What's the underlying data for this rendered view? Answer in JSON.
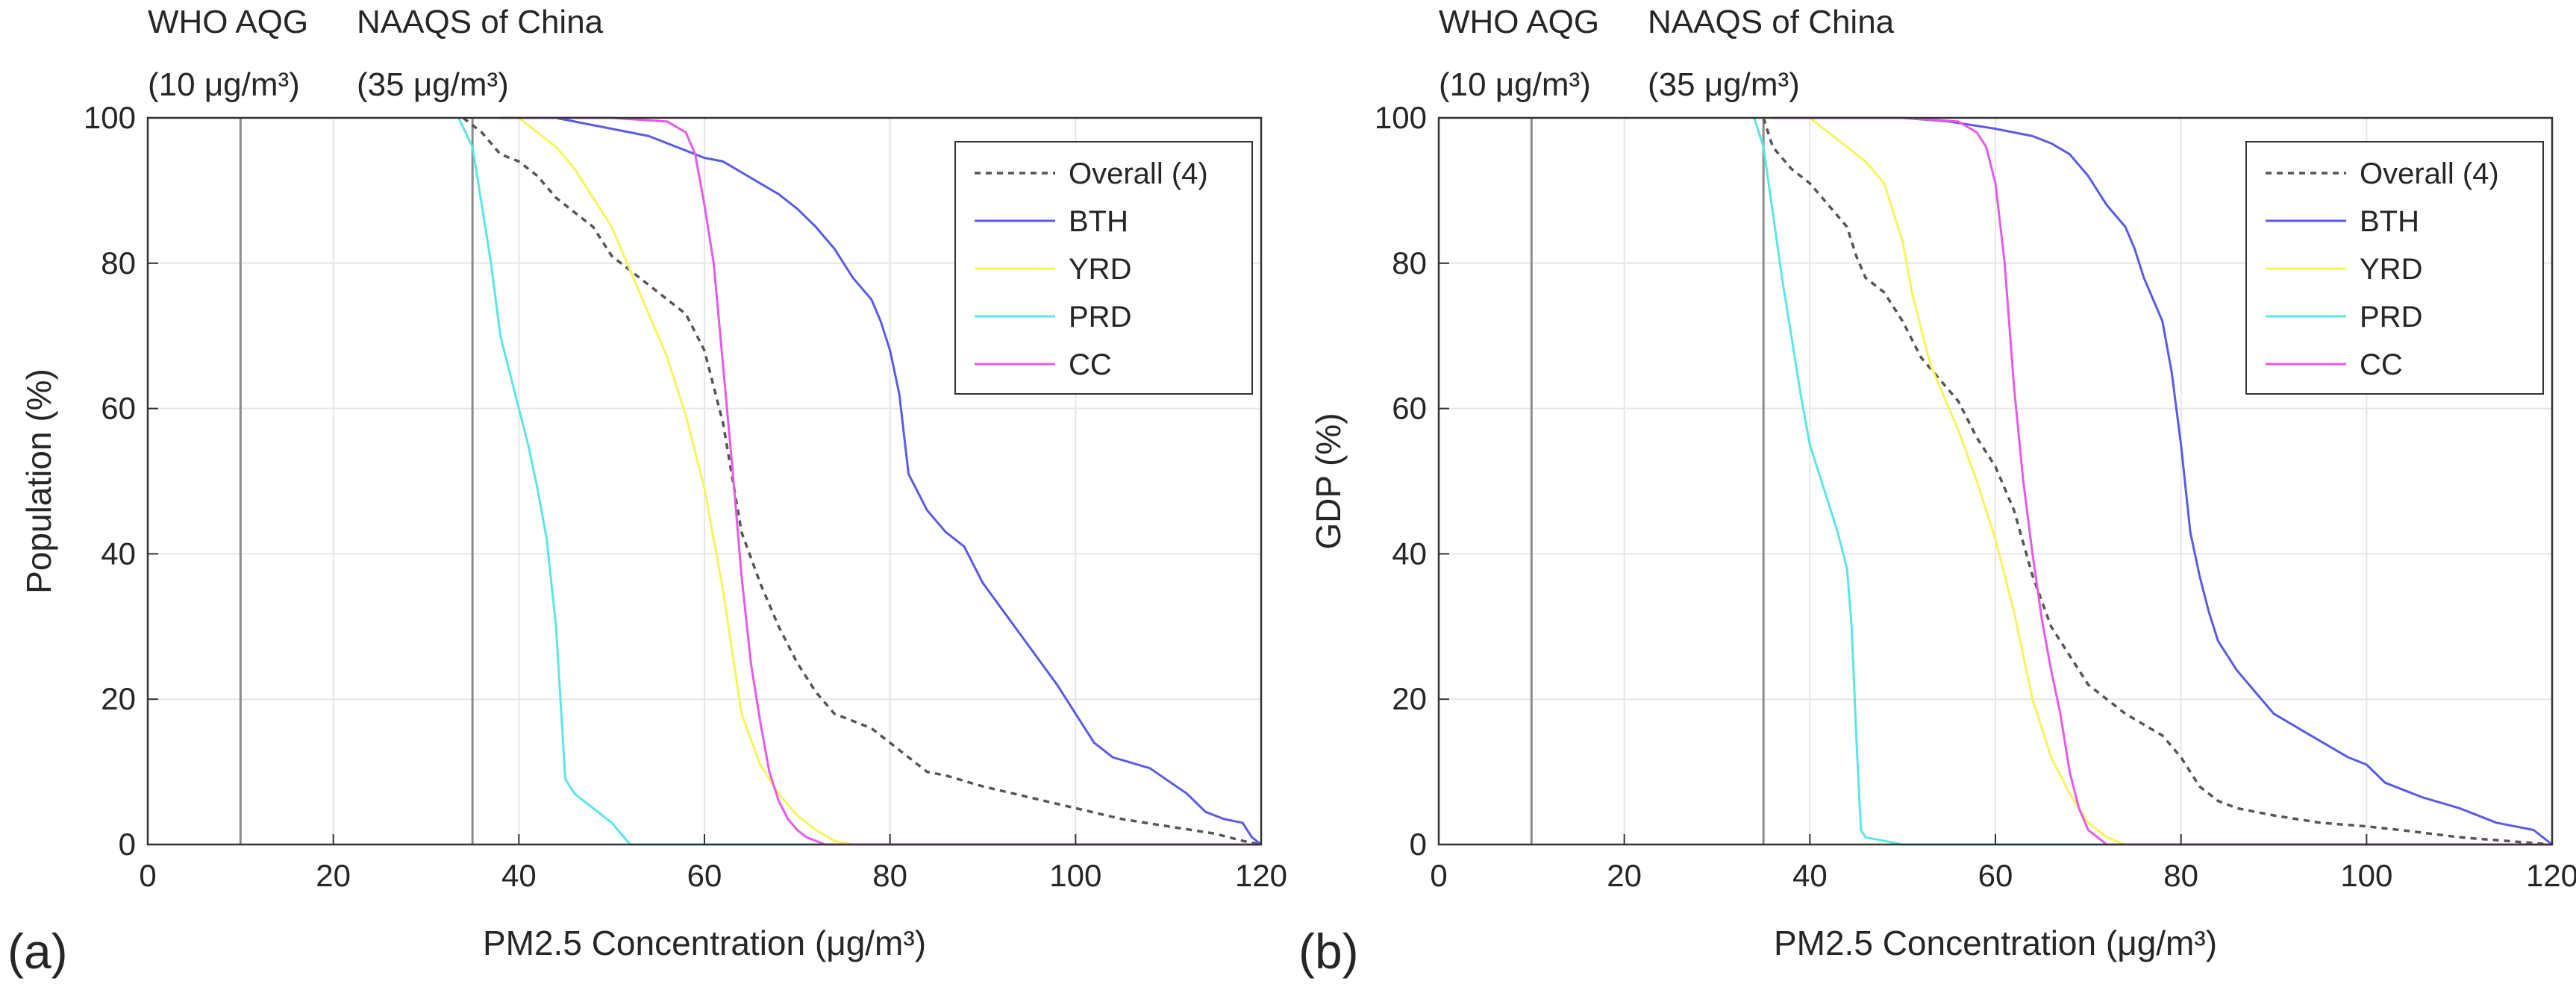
{
  "colors": {
    "overall": "#555555",
    "BTH": "#5a5ae6",
    "YRD": "#f5f55a",
    "PRD": "#5ae6e6",
    "CC": "#e65ae6",
    "grid": "#e6e6e6",
    "threshold": "#8c8c8c",
    "axis": "#333333"
  },
  "panels": [
    {
      "panel_label": "(a)",
      "threshold_who_line1": "WHO AQG",
      "threshold_who_line2": "(10 μg/m³)",
      "threshold_naaqs_line1": "NAAQS of China",
      "threshold_naaqs_line2": "(35 μg/m³)",
      "legend": [
        "Overall (4)",
        "BTH",
        "YRD",
        "PRD",
        "CC"
      ]
    },
    {
      "panel_label": "(b)",
      "threshold_who_line1": "WHO AQG",
      "threshold_who_line2": "(10 μg/m³)",
      "threshold_naaqs_line1": "NAAQS of China",
      "threshold_naaqs_line2": "(35 μg/m³)",
      "legend": [
        "Overall (4)",
        "BTH",
        "YRD",
        "PRD",
        "CC"
      ]
    }
  ],
  "chart_data": [
    {
      "type": "line",
      "title": "",
      "xlabel": "PM2.5 Concentration (μg/m³)",
      "ylabel": "Population (%)",
      "xlim": [
        0,
        120
      ],
      "ylim": [
        0,
        100
      ],
      "xticks": [
        0,
        20,
        40,
        60,
        80,
        100,
        120
      ],
      "yticks": [
        0,
        20,
        40,
        60,
        80,
        100
      ],
      "grid": true,
      "legend_position": "top-right",
      "thresholds": [
        10,
        35
      ],
      "series": [
        {
          "name": "Overall (4)",
          "key": "overall",
          "dashed": true,
          "x": [
            34,
            36,
            38,
            40,
            42,
            44,
            46,
            48,
            50,
            52,
            54,
            56,
            58,
            60,
            62,
            64,
            66,
            68,
            70,
            72,
            74,
            76,
            78,
            80,
            82,
            84,
            86,
            90,
            95,
            100,
            105,
            110,
            115,
            118,
            120
          ],
          "y": [
            100,
            98,
            95,
            94,
            92,
            89,
            87,
            85,
            81,
            79,
            77,
            75,
            73,
            68,
            58,
            43,
            36,
            30,
            25,
            21,
            18,
            17,
            16,
            14,
            12,
            10,
            9.5,
            8,
            6.5,
            5,
            3.5,
            2.5,
            1.5,
            0.5,
            0
          ]
        },
        {
          "name": "BTH",
          "key": "BTH",
          "x": [
            44,
            46,
            50,
            54,
            56,
            58,
            60,
            62,
            64,
            66,
            68,
            70,
            72,
            74,
            76,
            78,
            79,
            80,
            81,
            82,
            84,
            86,
            88,
            90,
            94,
            98,
            100,
            102,
            104,
            108,
            112,
            114,
            116,
            118,
            119,
            120
          ],
          "y": [
            100,
            99.5,
            98.5,
            97.5,
            96.5,
            95.5,
            94.5,
            94,
            92.5,
            91,
            89.5,
            87.5,
            85,
            82,
            78,
            75,
            72,
            68,
            62,
            51,
            46,
            43,
            41,
            36,
            29,
            22,
            18,
            14,
            12,
            10.5,
            7,
            4.5,
            3.5,
            3,
            1,
            0
          ]
        },
        {
          "name": "YRD",
          "key": "YRD",
          "x": [
            40,
            42,
            44,
            46,
            48,
            50,
            52,
            54,
            56,
            58,
            60,
            62,
            64,
            66,
            68,
            70,
            72,
            74,
            76,
            120
          ],
          "y": [
            100,
            98,
            96,
            93,
            89,
            85,
            79,
            73,
            67,
            59,
            49,
            35,
            18,
            11,
            7,
            4,
            2,
            0.5,
            0,
            0
          ]
        },
        {
          "name": "PRD",
          "key": "PRD",
          "x": [
            33.5,
            35,
            36,
            37,
            38,
            39,
            40,
            41,
            42,
            43,
            44,
            45,
            46,
            48,
            50,
            51,
            52,
            120
          ],
          "y": [
            100,
            96,
            88,
            80,
            70,
            65,
            60,
            55,
            49,
            42,
            30,
            9,
            7,
            5,
            3,
            1.5,
            0,
            0
          ]
        },
        {
          "name": "CC",
          "key": "CC",
          "x": [
            38,
            50,
            56,
            58,
            59,
            60,
            61,
            62,
            63,
            64,
            65,
            66,
            67,
            68,
            69,
            70,
            71,
            72,
            73,
            120
          ],
          "y": [
            100,
            100,
            99.5,
            98,
            95,
            88,
            80,
            66,
            52,
            37,
            25,
            17,
            10,
            6,
            3.5,
            2,
            1,
            0.5,
            0,
            0
          ]
        }
      ]
    },
    {
      "type": "line",
      "title": "",
      "xlabel": "PM2.5 Concentration (μg/m³)",
      "ylabel": "GDP (%)",
      "xlim": [
        0,
        120
      ],
      "ylim": [
        0,
        100
      ],
      "xticks": [
        0,
        20,
        40,
        60,
        80,
        100,
        120
      ],
      "yticks": [
        0,
        20,
        40,
        60,
        80,
        100
      ],
      "grid": true,
      "legend_position": "top-right",
      "thresholds": [
        10,
        35
      ],
      "series": [
        {
          "name": "Overall (4)",
          "key": "overall",
          "dashed": true,
          "x": [
            35,
            36,
            38,
            40,
            42,
            44,
            45,
            46,
            48,
            50,
            52,
            54,
            56,
            58,
            60,
            62,
            64,
            66,
            68,
            70,
            72,
            74,
            76,
            78,
            80,
            82,
            84,
            86,
            90,
            95,
            100,
            105,
            110,
            115,
            120
          ],
          "y": [
            100,
            96,
            93,
            91,
            88,
            85,
            81,
            78,
            76,
            72,
            67,
            64,
            61,
            56,
            52,
            46,
            37,
            30,
            26,
            22,
            20,
            18,
            16.5,
            15,
            12,
            8,
            6,
            5,
            4,
            3,
            2.5,
            1.8,
            1,
            0.5,
            0
          ]
        },
        {
          "name": "BTH",
          "key": "BTH",
          "x": [
            40,
            50,
            55,
            60,
            64,
            66,
            68,
            70,
            72,
            74,
            75,
            76,
            78,
            79,
            80,
            81,
            82,
            83,
            84,
            86,
            88,
            90,
            94,
            98,
            100,
            102,
            106,
            110,
            114,
            118,
            120
          ],
          "y": [
            100,
            100,
            99.5,
            98.5,
            97.5,
            96.5,
            95,
            92,
            88,
            85,
            82,
            78,
            72,
            65,
            55,
            43,
            37,
            32,
            28,
            24,
            21,
            18,
            15,
            12,
            11,
            8.5,
            6.5,
            5,
            3,
            2,
            0
          ]
        },
        {
          "name": "YRD",
          "key": "YRD",
          "x": [
            35,
            40,
            42,
            44,
            46,
            48,
            50,
            51,
            52,
            53,
            54,
            56,
            58,
            60,
            62,
            64,
            66,
            68,
            70,
            72,
            74,
            120
          ],
          "y": [
            100,
            100,
            98,
            96,
            94,
            91,
            83,
            76,
            71,
            66,
            63,
            57,
            50,
            42,
            32,
            20,
            12,
            7,
            3,
            1,
            0,
            0
          ]
        },
        {
          "name": "PRD",
          "key": "PRD",
          "x": [
            34,
            35,
            36,
            37,
            38,
            39,
            40,
            41,
            42,
            43,
            44,
            44.5,
            45,
            45.5,
            46,
            48,
            50,
            120
          ],
          "y": [
            100,
            96,
            87,
            78,
            70,
            62,
            55,
            51,
            47,
            43,
            38,
            30,
            15,
            2,
            1,
            0.5,
            0,
            0
          ]
        },
        {
          "name": "CC",
          "key": "CC",
          "x": [
            36,
            50,
            56,
            58,
            59,
            60,
            61,
            62,
            63,
            64,
            65,
            66,
            67,
            68,
            69,
            70,
            71,
            72,
            120
          ],
          "y": [
            100,
            100,
            99.5,
            98,
            96,
            91,
            80,
            63,
            50,
            40,
            31,
            24,
            18,
            10,
            5,
            2,
            1,
            0,
            0
          ]
        }
      ]
    }
  ]
}
